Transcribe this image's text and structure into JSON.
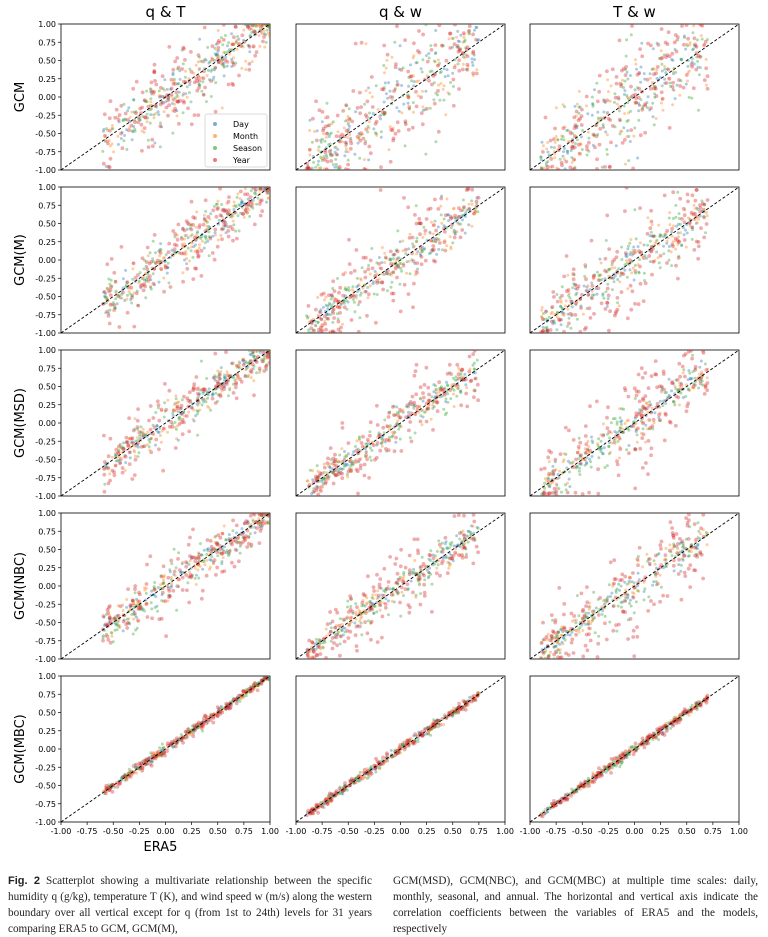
{
  "chart_data": {
    "type": "scatter",
    "column_titles": [
      "q & T",
      "q & w",
      "T & w"
    ],
    "row_labels": [
      "GCM",
      "GCM(M)",
      "GCM(MSD)",
      "GCM(NBC)",
      "GCM(MBC)"
    ],
    "xlabel": "ERA5",
    "xlim": [
      -1.0,
      1.0
    ],
    "ylim": [
      -1.0,
      1.0
    ],
    "ticks": [
      "-1.00",
      "-0.75",
      "-0.50",
      "-0.25",
      "0.00",
      "0.25",
      "0.50",
      "0.75",
      "1.00"
    ],
    "reference_line": "y = x (dashed)",
    "legend": {
      "placement": "lower-right of first panel",
      "entries": [
        {
          "name": "Day",
          "color": "#1f77b4",
          "marker": "square"
        },
        {
          "name": "Month",
          "color": "#ff7f0e",
          "marker": "plus"
        },
        {
          "name": "Season",
          "color": "#2ca02c",
          "marker": "triangle"
        },
        {
          "name": "Year",
          "color": "#d62728",
          "marker": "circle"
        }
      ]
    },
    "panels_spread_note": "per-panel x range and y-scatter about the 1:1 line for each series (Day, Month, Season, Year)",
    "panels": [
      [
        {
          "xr": [
            -0.6,
            1.0
          ],
          "spread": [
            0.18,
            0.22,
            0.25,
            0.3
          ]
        },
        {
          "xr": [
            -0.9,
            0.75
          ],
          "spread": [
            0.3,
            0.35,
            0.4,
            0.45
          ]
        },
        {
          "xr": [
            -0.9,
            0.7
          ],
          "spread": [
            0.3,
            0.35,
            0.4,
            0.45
          ]
        }
      ],
      [
        {
          "xr": [
            -0.6,
            1.0
          ],
          "spread": [
            0.15,
            0.18,
            0.2,
            0.28
          ]
        },
        {
          "xr": [
            -0.9,
            0.75
          ],
          "spread": [
            0.15,
            0.18,
            0.22,
            0.35
          ]
        },
        {
          "xr": [
            -0.9,
            0.7
          ],
          "spread": [
            0.15,
            0.2,
            0.25,
            0.4
          ]
        }
      ],
      [
        {
          "xr": [
            -0.6,
            1.0
          ],
          "spread": [
            0.12,
            0.15,
            0.18,
            0.25
          ]
        },
        {
          "xr": [
            -0.9,
            0.75
          ],
          "spread": [
            0.1,
            0.12,
            0.15,
            0.28
          ]
        },
        {
          "xr": [
            -0.9,
            0.7
          ],
          "spread": [
            0.12,
            0.15,
            0.2,
            0.38
          ]
        }
      ],
      [
        {
          "xr": [
            -0.6,
            1.0
          ],
          "spread": [
            0.1,
            0.12,
            0.15,
            0.22
          ]
        },
        {
          "xr": [
            -0.9,
            0.75
          ],
          "spread": [
            0.1,
            0.12,
            0.15,
            0.28
          ]
        },
        {
          "xr": [
            -0.9,
            0.7
          ],
          "spread": [
            0.1,
            0.12,
            0.18,
            0.38
          ]
        }
      ],
      [
        {
          "xr": [
            -0.6,
            1.0
          ],
          "spread": [
            0.03,
            0.03,
            0.04,
            0.04
          ]
        },
        {
          "xr": [
            -0.9,
            0.75
          ],
          "spread": [
            0.03,
            0.03,
            0.04,
            0.04
          ]
        },
        {
          "xr": [
            -0.9,
            0.7
          ],
          "spread": [
            0.03,
            0.03,
            0.04,
            0.04
          ]
        }
      ]
    ]
  },
  "caption": {
    "fig_label": "Fig. 2",
    "left": "Scatterplot showing a multivariate relationship between the specific humidity q (g/kg), temperature T (K), and wind speed w (m/s) along the western boundary over all vertical except for q (from 1st to 24th) levels for 31 years comparing ERA5 to GCM, GCM(M),",
    "right": "GCM(MSD), GCM(NBC), and GCM(MBC) at multiple time scales: daily, monthly, seasonal, and annual. The horizontal and vertical axis indicate the correlation coefficients between the variables of ERA5 and the models, respectively"
  }
}
